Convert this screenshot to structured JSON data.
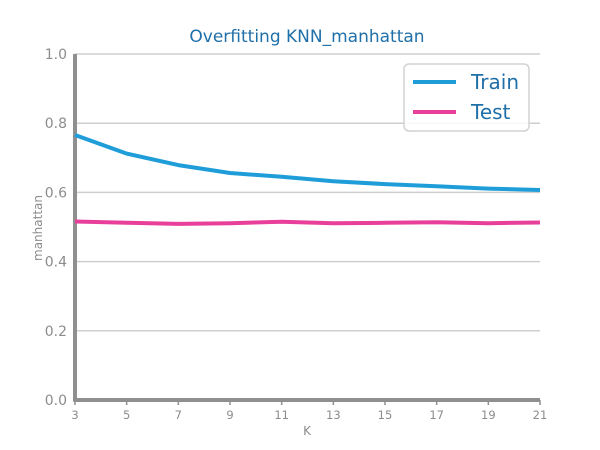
{
  "chart_data": {
    "type": "line",
    "title": "Overfitting KNN_manhattan",
    "xlabel": "K",
    "ylabel": "manhattan",
    "x": [
      3,
      5,
      7,
      9,
      11,
      13,
      15,
      17,
      19,
      21
    ],
    "xticks": [
      "3",
      "5",
      "7",
      "9",
      "11",
      "13",
      "15",
      "17",
      "19",
      "21"
    ],
    "ylim": [
      0,
      1
    ],
    "yticks": [
      "0.0",
      "0.2",
      "0.4",
      "0.6",
      "0.8",
      "1.0"
    ],
    "grid": "horizontal",
    "legend_position": "top-right",
    "series": [
      {
        "name": "Train",
        "color": "#1f9dd9",
        "values": [
          0.766,
          0.712,
          0.679,
          0.656,
          0.645,
          0.632,
          0.624,
          0.618,
          0.611,
          0.607
        ]
      },
      {
        "name": "Test",
        "color": "#e8409a",
        "values": [
          0.516,
          0.512,
          0.509,
          0.511,
          0.515,
          0.511,
          0.512,
          0.514,
          0.511,
          0.513
        ]
      }
    ]
  }
}
